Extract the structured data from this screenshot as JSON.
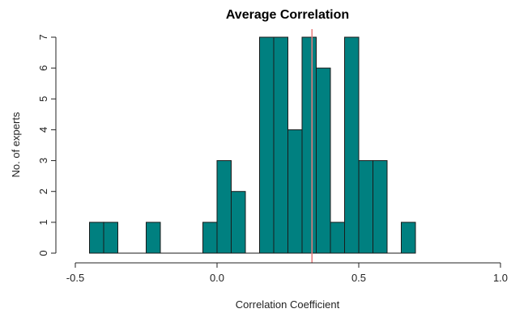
{
  "chart_data": {
    "type": "bar",
    "title": "Average Correlation",
    "xlabel": "Correlation Coefficient",
    "ylabel": "No. of experts",
    "xlim": [
      -0.5,
      1.0
    ],
    "ylim": [
      0,
      7
    ],
    "xticks": [
      -0.5,
      0.0,
      0.5,
      1.0
    ],
    "xtick_labels": [
      "-0.5",
      "0.0",
      "0.5",
      "1.0"
    ],
    "yticks": [
      0,
      1,
      2,
      3,
      4,
      5,
      6,
      7
    ],
    "ytick_labels": [
      "0",
      "1",
      "2",
      "3",
      "4",
      "5",
      "6",
      "7"
    ],
    "bin_width": 0.05,
    "bins": [
      {
        "start": -0.45,
        "end": -0.4,
        "count": 1
      },
      {
        "start": -0.4,
        "end": -0.35,
        "count": 1
      },
      {
        "start": -0.35,
        "end": -0.3,
        "count": 0
      },
      {
        "start": -0.3,
        "end": -0.25,
        "count": 0
      },
      {
        "start": -0.25,
        "end": -0.2,
        "count": 1
      },
      {
        "start": -0.2,
        "end": -0.15,
        "count": 0
      },
      {
        "start": -0.15,
        "end": -0.1,
        "count": 0
      },
      {
        "start": -0.1,
        "end": -0.05,
        "count": 0
      },
      {
        "start": -0.05,
        "end": 0.0,
        "count": 1
      },
      {
        "start": 0.0,
        "end": 0.05,
        "count": 3
      },
      {
        "start": 0.05,
        "end": 0.1,
        "count": 2
      },
      {
        "start": 0.1,
        "end": 0.15,
        "count": 0
      },
      {
        "start": 0.15,
        "end": 0.2,
        "count": 7
      },
      {
        "start": 0.2,
        "end": 0.25,
        "count": 7
      },
      {
        "start": 0.25,
        "end": 0.3,
        "count": 4
      },
      {
        "start": 0.3,
        "end": 0.35,
        "count": 7
      },
      {
        "start": 0.35,
        "end": 0.4,
        "count": 6
      },
      {
        "start": 0.4,
        "end": 0.45,
        "count": 1
      },
      {
        "start": 0.45,
        "end": 0.5,
        "count": 7
      },
      {
        "start": 0.5,
        "end": 0.55,
        "count": 3
      },
      {
        "start": 0.55,
        "end": 0.6,
        "count": 3
      },
      {
        "start": 0.6,
        "end": 0.65,
        "count": 0
      },
      {
        "start": 0.65,
        "end": 0.7,
        "count": 1
      }
    ],
    "reference_line_x": 0.335,
    "bar_color": "#008080",
    "reference_line_color": "#e87d7d",
    "grid": false,
    "legend": "none"
  }
}
